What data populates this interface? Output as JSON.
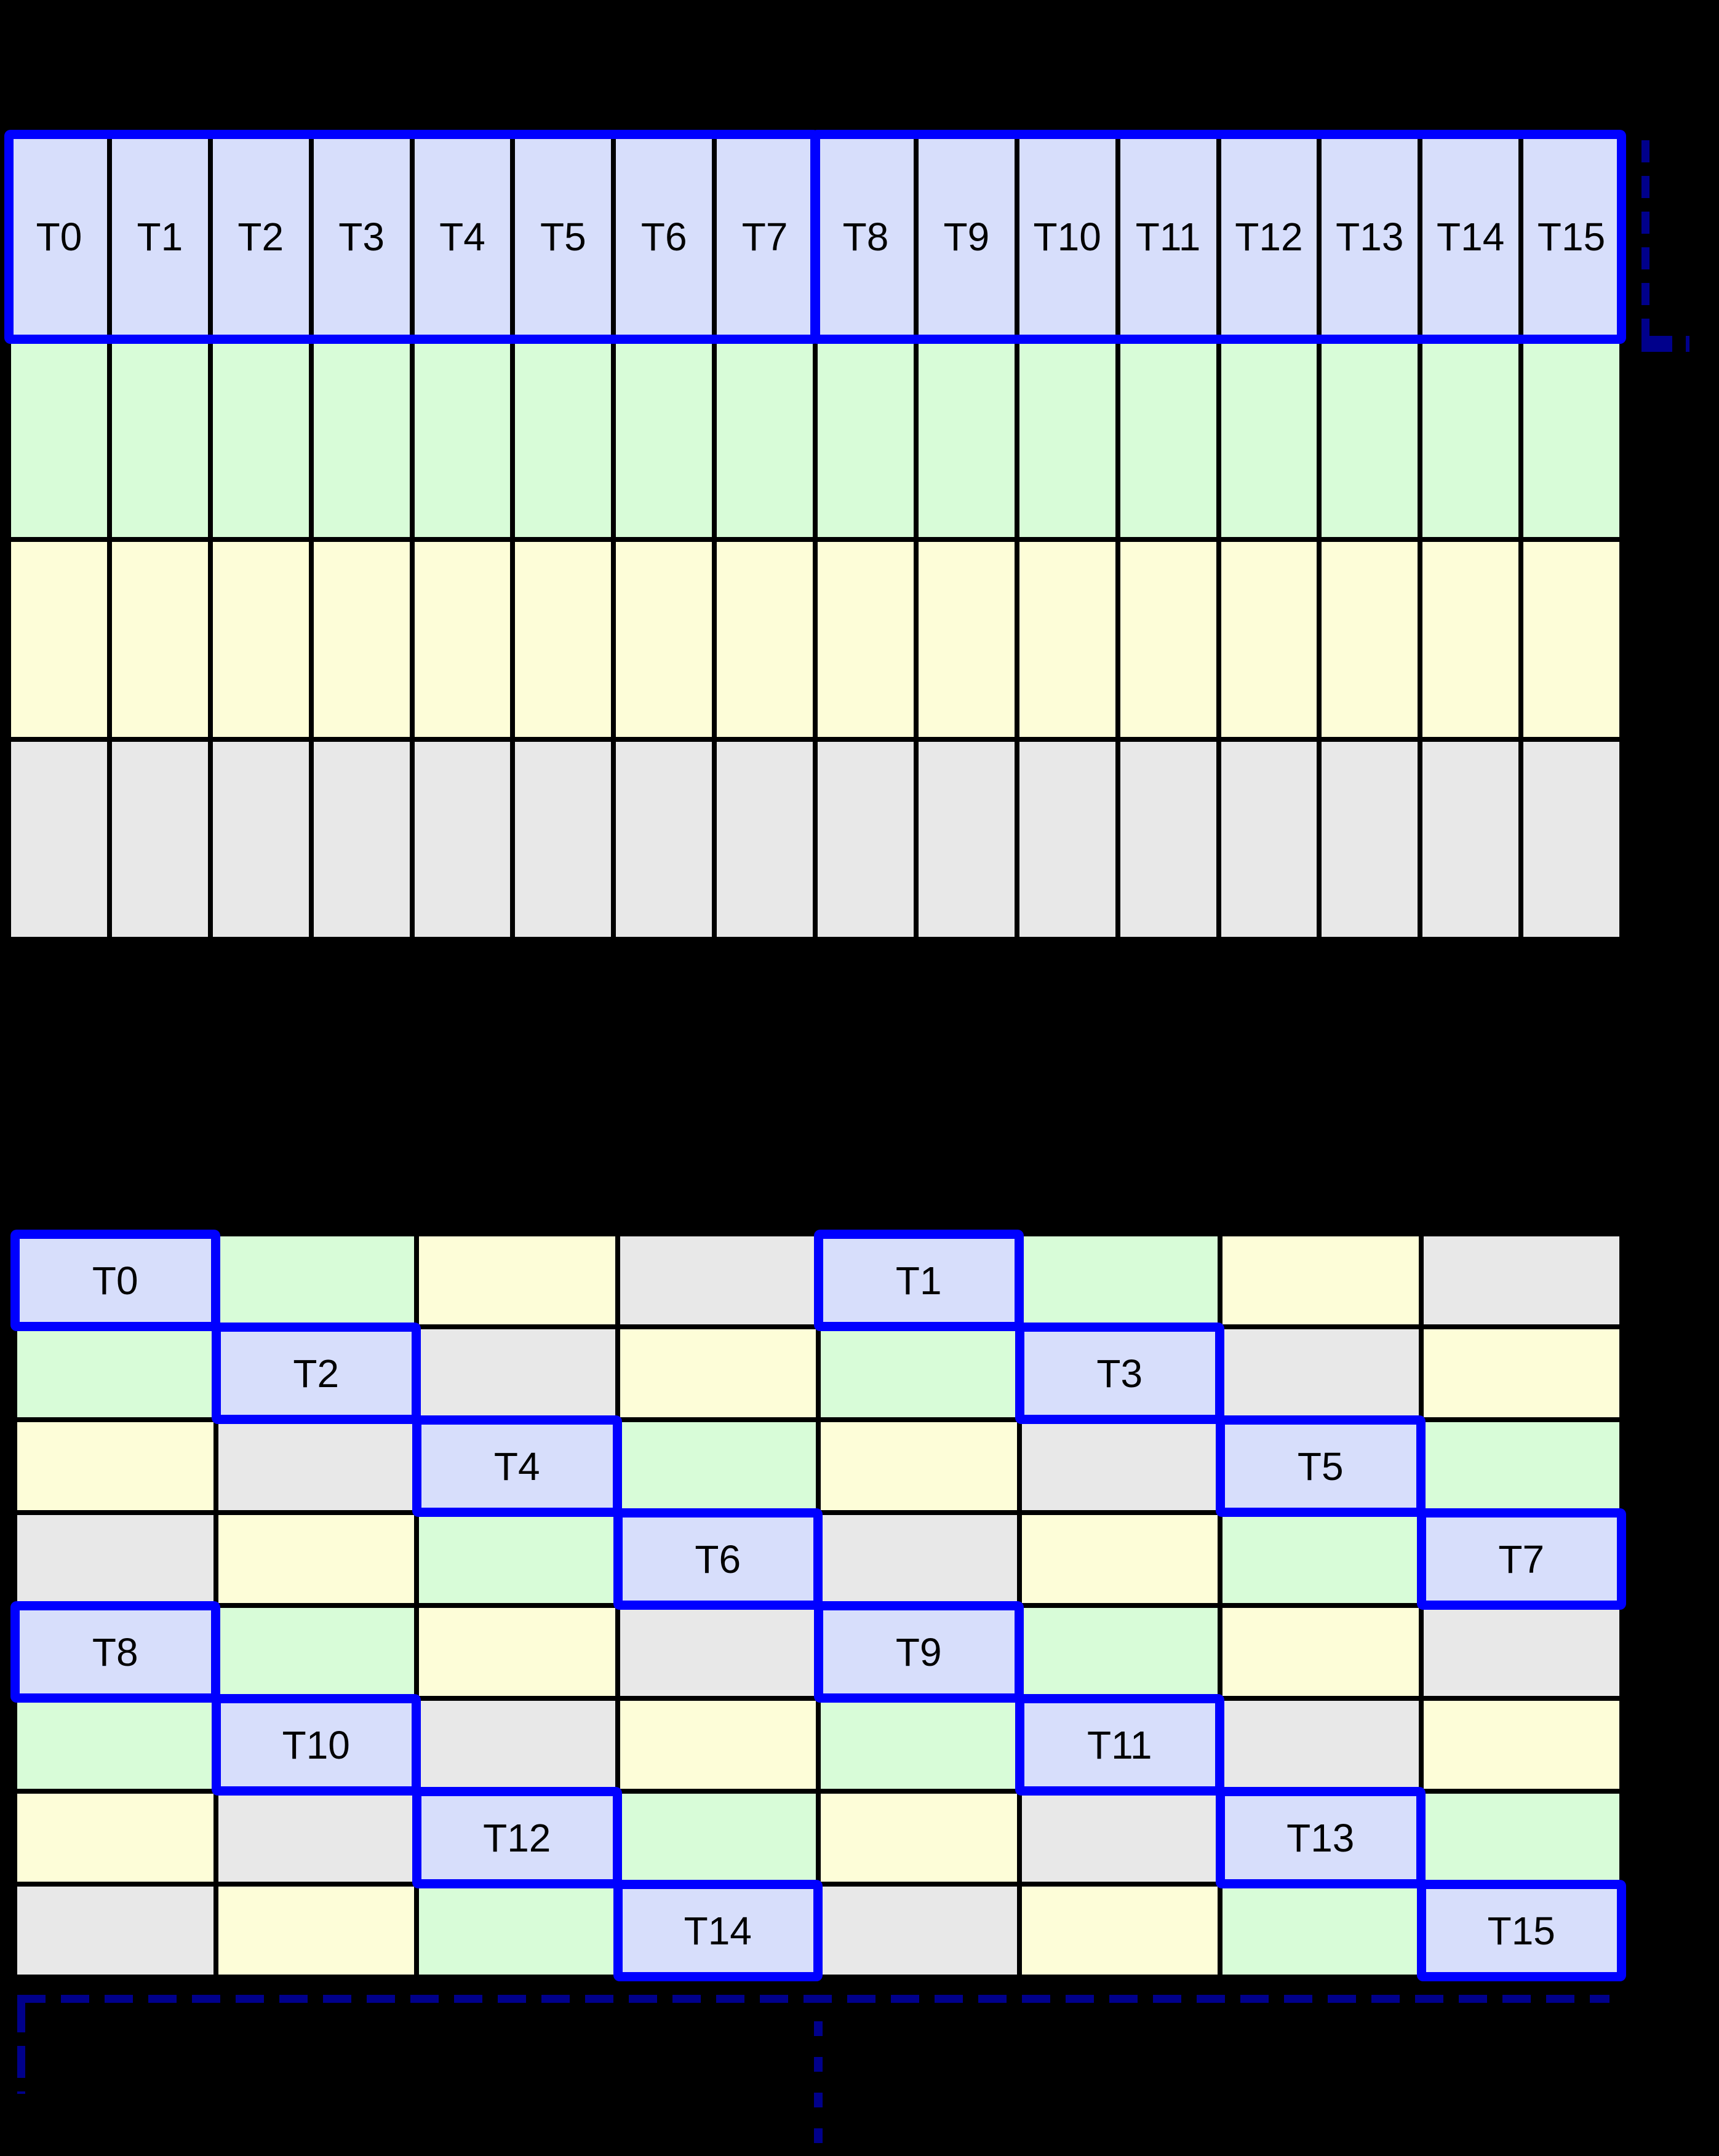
{
  "diagram": {
    "background": "#000000",
    "palette": {
      "thread": "#d7defb",
      "green": "#d8fcd8",
      "yellow": "#fdfdd8",
      "gray": "#e8e8e8",
      "highlight": "#0000ff",
      "line": "#000000",
      "annotation": "#00008b",
      "label_color": "#000000"
    },
    "top_grid": {
      "columns": 16,
      "thread_labels": [
        "T0",
        "T1",
        "T2",
        "T3",
        "T4",
        "T5",
        "T6",
        "T7",
        "T8",
        "T9",
        "T10",
        "T11",
        "T12",
        "T13",
        "T14",
        "T15"
      ],
      "memory_row_colors": [
        "green",
        "yellow",
        "gray"
      ],
      "highlight_groups": [
        {
          "from_col": 0,
          "to_col": 7
        },
        {
          "from_col": 8,
          "to_col": 15
        }
      ]
    },
    "bottom_grid": {
      "columns": 8,
      "rows": [
        [
          {
            "k": "thread",
            "label": "T0"
          },
          {
            "k": "green"
          },
          {
            "k": "yellow"
          },
          {
            "k": "gray"
          },
          {
            "k": "thread",
            "label": "T1"
          },
          {
            "k": "green"
          },
          {
            "k": "yellow"
          },
          {
            "k": "gray"
          }
        ],
        [
          {
            "k": "green"
          },
          {
            "k": "thread",
            "label": "T2"
          },
          {
            "k": "gray"
          },
          {
            "k": "yellow"
          },
          {
            "k": "green"
          },
          {
            "k": "thread",
            "label": "T3"
          },
          {
            "k": "gray"
          },
          {
            "k": "yellow"
          }
        ],
        [
          {
            "k": "yellow"
          },
          {
            "k": "gray"
          },
          {
            "k": "thread",
            "label": "T4"
          },
          {
            "k": "green"
          },
          {
            "k": "yellow"
          },
          {
            "k": "gray"
          },
          {
            "k": "thread",
            "label": "T5"
          },
          {
            "k": "green"
          }
        ],
        [
          {
            "k": "gray"
          },
          {
            "k": "yellow"
          },
          {
            "k": "green"
          },
          {
            "k": "thread",
            "label": "T6"
          },
          {
            "k": "gray"
          },
          {
            "k": "yellow"
          },
          {
            "k": "green"
          },
          {
            "k": "thread",
            "label": "T7"
          }
        ],
        [
          {
            "k": "thread",
            "label": "T8"
          },
          {
            "k": "green"
          },
          {
            "k": "yellow"
          },
          {
            "k": "gray"
          },
          {
            "k": "thread",
            "label": "T9"
          },
          {
            "k": "green"
          },
          {
            "k": "yellow"
          },
          {
            "k": "gray"
          }
        ],
        [
          {
            "k": "green"
          },
          {
            "k": "thread",
            "label": "T10"
          },
          {
            "k": "gray"
          },
          {
            "k": "yellow"
          },
          {
            "k": "green"
          },
          {
            "k": "thread",
            "label": "T11"
          },
          {
            "k": "gray"
          },
          {
            "k": "yellow"
          }
        ],
        [
          {
            "k": "yellow"
          },
          {
            "k": "gray"
          },
          {
            "k": "thread",
            "label": "T12"
          },
          {
            "k": "green"
          },
          {
            "k": "yellow"
          },
          {
            "k": "gray"
          },
          {
            "k": "thread",
            "label": "T13"
          },
          {
            "k": "green"
          }
        ],
        [
          {
            "k": "gray"
          },
          {
            "k": "yellow"
          },
          {
            "k": "green"
          },
          {
            "k": "thread",
            "label": "T14"
          },
          {
            "k": "gray"
          },
          {
            "k": "yellow"
          },
          {
            "k": "green"
          },
          {
            "k": "thread",
            "label": "T15"
          }
        ]
      ]
    },
    "annotations": {
      "right_bracket_style": "dashed",
      "bottom_bracket_style": "dashed",
      "vertical_ellipsis_style": "dashed"
    }
  }
}
